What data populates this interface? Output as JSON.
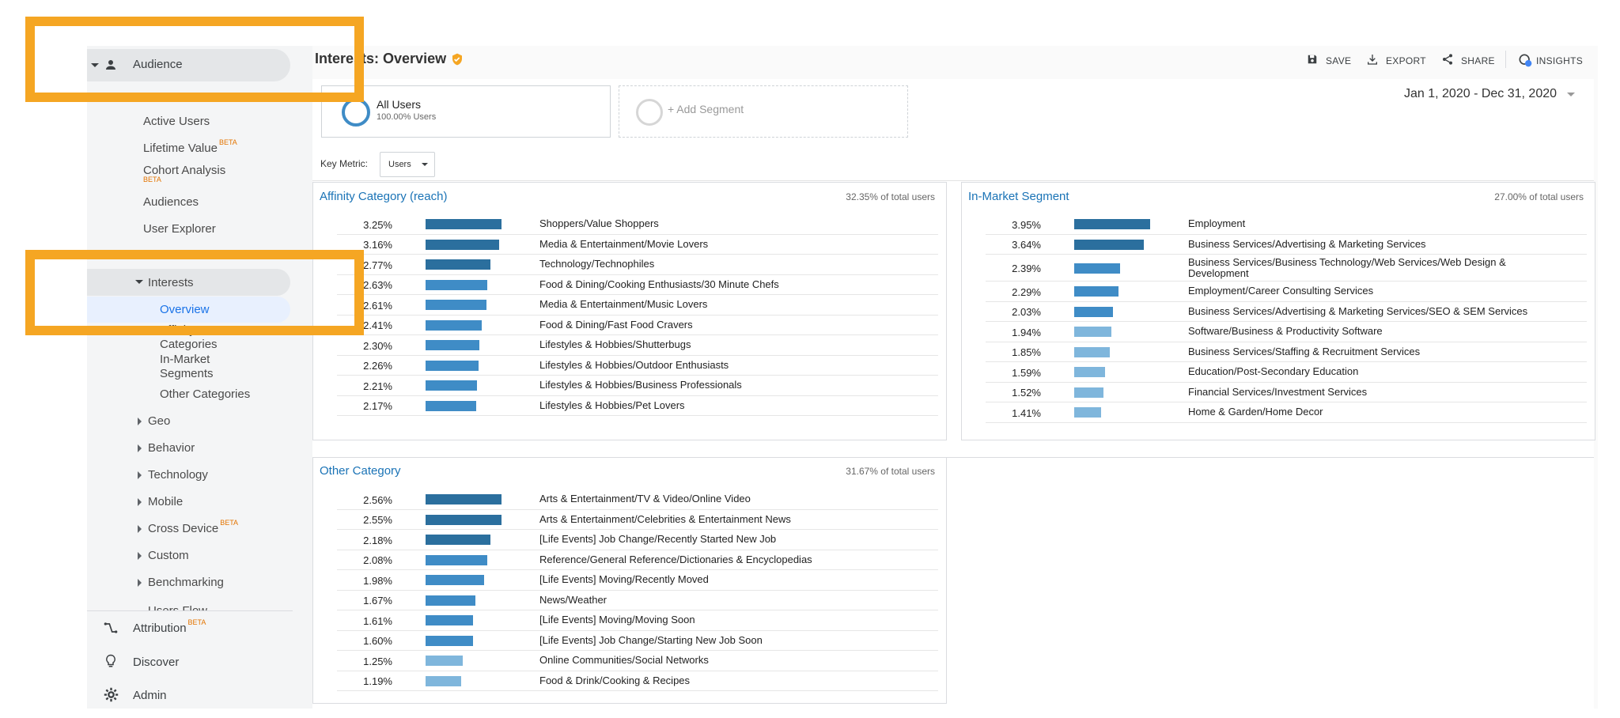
{
  "sidebar": {
    "audience": "Audience",
    "items": [
      {
        "label": "Active Users"
      },
      {
        "label": "Lifetime Value",
        "badge": "BETA"
      },
      {
        "label": "Cohort Analysis",
        "badge": "BETA"
      },
      {
        "label": "Audiences"
      },
      {
        "label": "User Explorer"
      }
    ],
    "interests": "Interests",
    "interests_items": [
      {
        "label": "Overview"
      },
      {
        "label": "Affinity Categories"
      },
      {
        "label": "In-Market Segments"
      },
      {
        "label": "Other Categories"
      }
    ],
    "collapsed": [
      {
        "label": "Geo"
      },
      {
        "label": "Behavior"
      },
      {
        "label": "Technology"
      },
      {
        "label": "Mobile"
      },
      {
        "label": "Cross Device",
        "badge": "BETA"
      },
      {
        "label": "Custom"
      },
      {
        "label": "Benchmarking"
      },
      {
        "label": "Users Flow"
      }
    ],
    "bottom": [
      {
        "label": "Attribution",
        "badge": "BETA",
        "icon": "attribution-icon"
      },
      {
        "label": "Discover",
        "icon": "lightbulb-icon"
      },
      {
        "label": "Admin",
        "icon": "gear-icon"
      }
    ]
  },
  "header": {
    "title": "Interests: Overview",
    "save": "SAVE",
    "export": "EXPORT",
    "share": "SHARE",
    "insights": "INSIGHTS",
    "date_range": "Jan 1, 2020 - Dec 31, 2020"
  },
  "segments": {
    "all_users": "All Users",
    "all_users_pct": "100.00% Users",
    "add_segment": "+ Add Segment"
  },
  "key_metric": {
    "label": "Key Metric:",
    "value": "Users"
  },
  "colors": {
    "dark": "#2b6f9e",
    "mid": "#3f8cc6",
    "light": "#7fb6dc",
    "accent": "#f5a623",
    "link": "#1a73b6"
  },
  "affinity": {
    "title": "Affinity Category (reach)",
    "note": "32.35% of total users",
    "rows": [
      {
        "pct": "3.25%",
        "value": 3.25,
        "label": "Shoppers/Value Shoppers"
      },
      {
        "pct": "3.16%",
        "value": 3.16,
        "label": "Media & Entertainment/Movie Lovers"
      },
      {
        "pct": "2.77%",
        "value": 2.77,
        "label": "Technology/Technophiles"
      },
      {
        "pct": "2.63%",
        "value": 2.63,
        "label": "Food & Dining/Cooking Enthusiasts/30 Minute Chefs"
      },
      {
        "pct": "2.61%",
        "value": 2.61,
        "label": "Media & Entertainment/Music Lovers"
      },
      {
        "pct": "2.41%",
        "value": 2.41,
        "label": "Food & Dining/Fast Food Cravers"
      },
      {
        "pct": "2.30%",
        "value": 2.3,
        "label": "Lifestyles & Hobbies/Shutterbugs"
      },
      {
        "pct": "2.26%",
        "value": 2.26,
        "label": "Lifestyles & Hobbies/Outdoor Enthusiasts"
      },
      {
        "pct": "2.21%",
        "value": 2.21,
        "label": "Lifestyles & Hobbies/Business Professionals"
      },
      {
        "pct": "2.17%",
        "value": 2.17,
        "label": "Lifestyles & Hobbies/Pet Lovers"
      }
    ]
  },
  "inmarket": {
    "title": "In-Market Segment",
    "note": "27.00% of total users",
    "rows": [
      {
        "pct": "3.95%",
        "value": 3.95,
        "label": "Employment"
      },
      {
        "pct": "3.64%",
        "value": 3.64,
        "label": "Business Services/Advertising & Marketing Services"
      },
      {
        "pct": "2.39%",
        "value": 2.39,
        "label": "Business Services/Business Technology/Web Services/Web Design & Development"
      },
      {
        "pct": "2.29%",
        "value": 2.29,
        "label": "Employment/Career Consulting Services"
      },
      {
        "pct": "2.03%",
        "value": 2.03,
        "label": "Business Services/Advertising & Marketing Services/SEO & SEM Services"
      },
      {
        "pct": "1.94%",
        "value": 1.94,
        "label": "Software/Business & Productivity Software"
      },
      {
        "pct": "1.85%",
        "value": 1.85,
        "label": "Business Services/Staffing & Recruitment Services"
      },
      {
        "pct": "1.59%",
        "value": 1.59,
        "label": "Education/Post-Secondary Education"
      },
      {
        "pct": "1.52%",
        "value": 1.52,
        "label": "Financial Services/Investment Services"
      },
      {
        "pct": "1.41%",
        "value": 1.41,
        "label": "Home & Garden/Home Decor"
      }
    ]
  },
  "other": {
    "title": "Other Category",
    "note": "31.67% of total users",
    "rows": [
      {
        "pct": "2.56%",
        "value": 2.56,
        "label": "Arts & Entertainment/TV & Video/Online Video"
      },
      {
        "pct": "2.55%",
        "value": 2.55,
        "label": "Arts & Entertainment/Celebrities & Entertainment News"
      },
      {
        "pct": "2.18%",
        "value": 2.18,
        "label": "[Life Events] Job Change/Recently Started New Job"
      },
      {
        "pct": "2.08%",
        "value": 2.08,
        "label": "Reference/General Reference/Dictionaries & Encyclopedias"
      },
      {
        "pct": "1.98%",
        "value": 1.98,
        "label": "[Life Events] Moving/Recently Moved"
      },
      {
        "pct": "1.67%",
        "value": 1.67,
        "label": "News/Weather"
      },
      {
        "pct": "1.61%",
        "value": 1.61,
        "label": "[Life Events] Moving/Moving Soon"
      },
      {
        "pct": "1.60%",
        "value": 1.6,
        "label": "[Life Events] Job Change/Starting New Job Soon"
      },
      {
        "pct": "1.25%",
        "value": 1.25,
        "label": "Online Communities/Social Networks"
      },
      {
        "pct": "1.19%",
        "value": 1.19,
        "label": "Food & Drink/Cooking & Recipes"
      }
    ]
  }
}
